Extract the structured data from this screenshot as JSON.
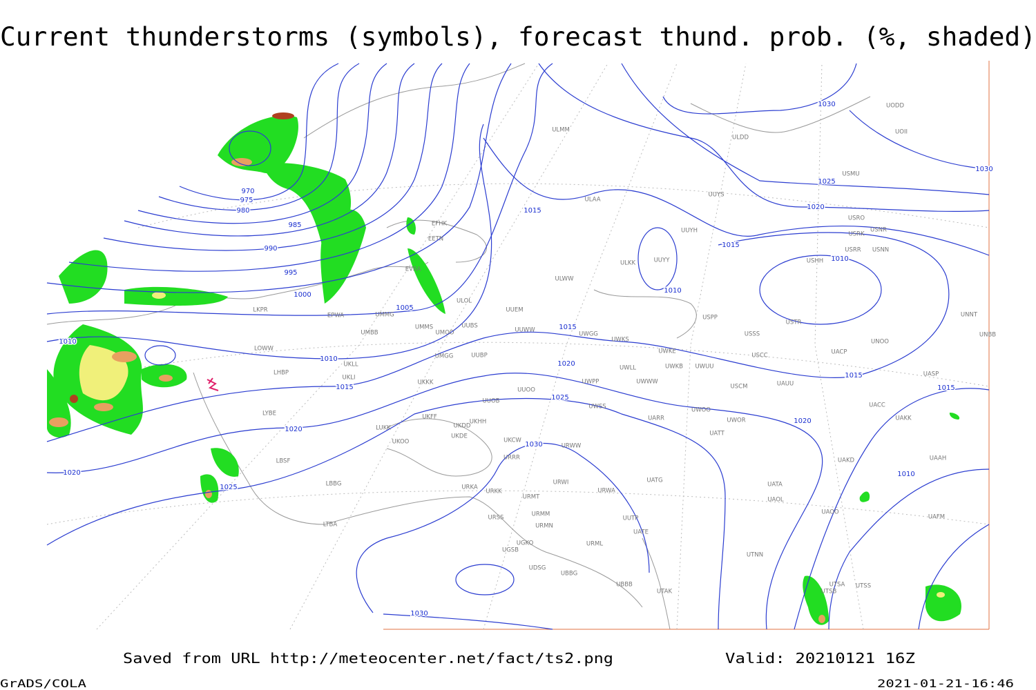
{
  "title": "Current thunderstorms (symbols), forecast thund. prob. (%, shaded)",
  "footer": {
    "source": "Saved from URL http://meteocenter.net/fact/ts2.png",
    "valid": "Valid: 20210121 16Z",
    "software": "GrADS/COLA",
    "timestamp": "2021-01-21-16:46"
  },
  "isobar_labels": [
    "970",
    "975",
    "980",
    "985",
    "990",
    "995",
    "1000",
    "1005",
    "1010",
    "1010",
    "1015",
    "1020",
    "1020",
    "1025",
    "1015",
    "1015",
    "1020",
    "1025",
    "1030",
    "1030",
    "1025",
    "1020",
    "1015",
    "1010",
    "1010",
    "1015",
    "1020",
    "1015",
    "1010",
    "1030",
    "1030"
  ],
  "stations": [
    "ULMM",
    "ULDD",
    "UODD",
    "UOII",
    "USMU",
    "ULAA",
    "UUYS",
    "USRO",
    "USRK",
    "USNR",
    "UUYH",
    "USRR",
    "USNN",
    "USHH",
    "ULKK",
    "UUYY",
    "ULWW",
    "UUEM",
    "USPP",
    "USTR",
    "UNNT",
    "UNBB",
    "UUWW",
    "UWGG",
    "UWKS",
    "USSS",
    "UNOO",
    "UWKE",
    "USCC",
    "UACP",
    "UWLL",
    "UWKB",
    "UWUU",
    "UASP",
    "UWWW",
    "USCM",
    "UAUU",
    "UWPP",
    "UACC",
    "UWSS",
    "UWOO",
    "UATT",
    "UWOR",
    "UAKK",
    "UARR",
    "URWW",
    "UAKD",
    "UAAH",
    "UATG",
    "UATA",
    "UAOL",
    "UAOO",
    "UAFM",
    "UTNN",
    "UTSA",
    "UTSS",
    "UTSB",
    "EFHK",
    "EETN",
    "EVRA",
    "ULOL",
    "UMMS",
    "UMOO",
    "UUBS",
    "LKPR",
    "EPWA",
    "UMMG",
    "UMBB",
    "LOWW",
    "LHBP",
    "UKLL",
    "UKLI",
    "UKKK",
    "UUOO",
    "UMGG",
    "UUBP",
    "LYBE",
    "UKFF",
    "UUOB",
    "UKDD",
    "UKHH",
    "UKDE",
    "UKOO",
    "LUKK",
    "UKCW",
    "URRR",
    "LBSF",
    "LBBG",
    "URKA",
    "URKK",
    "URWI",
    "URMT",
    "URMM",
    "URMN",
    "URSS",
    "UGKO",
    "UGSB",
    "URML",
    "UBBB",
    "UTAK",
    "UDSG",
    "UBBG",
    "LTBA",
    "UUTP",
    "UATE",
    "URWA"
  ]
}
